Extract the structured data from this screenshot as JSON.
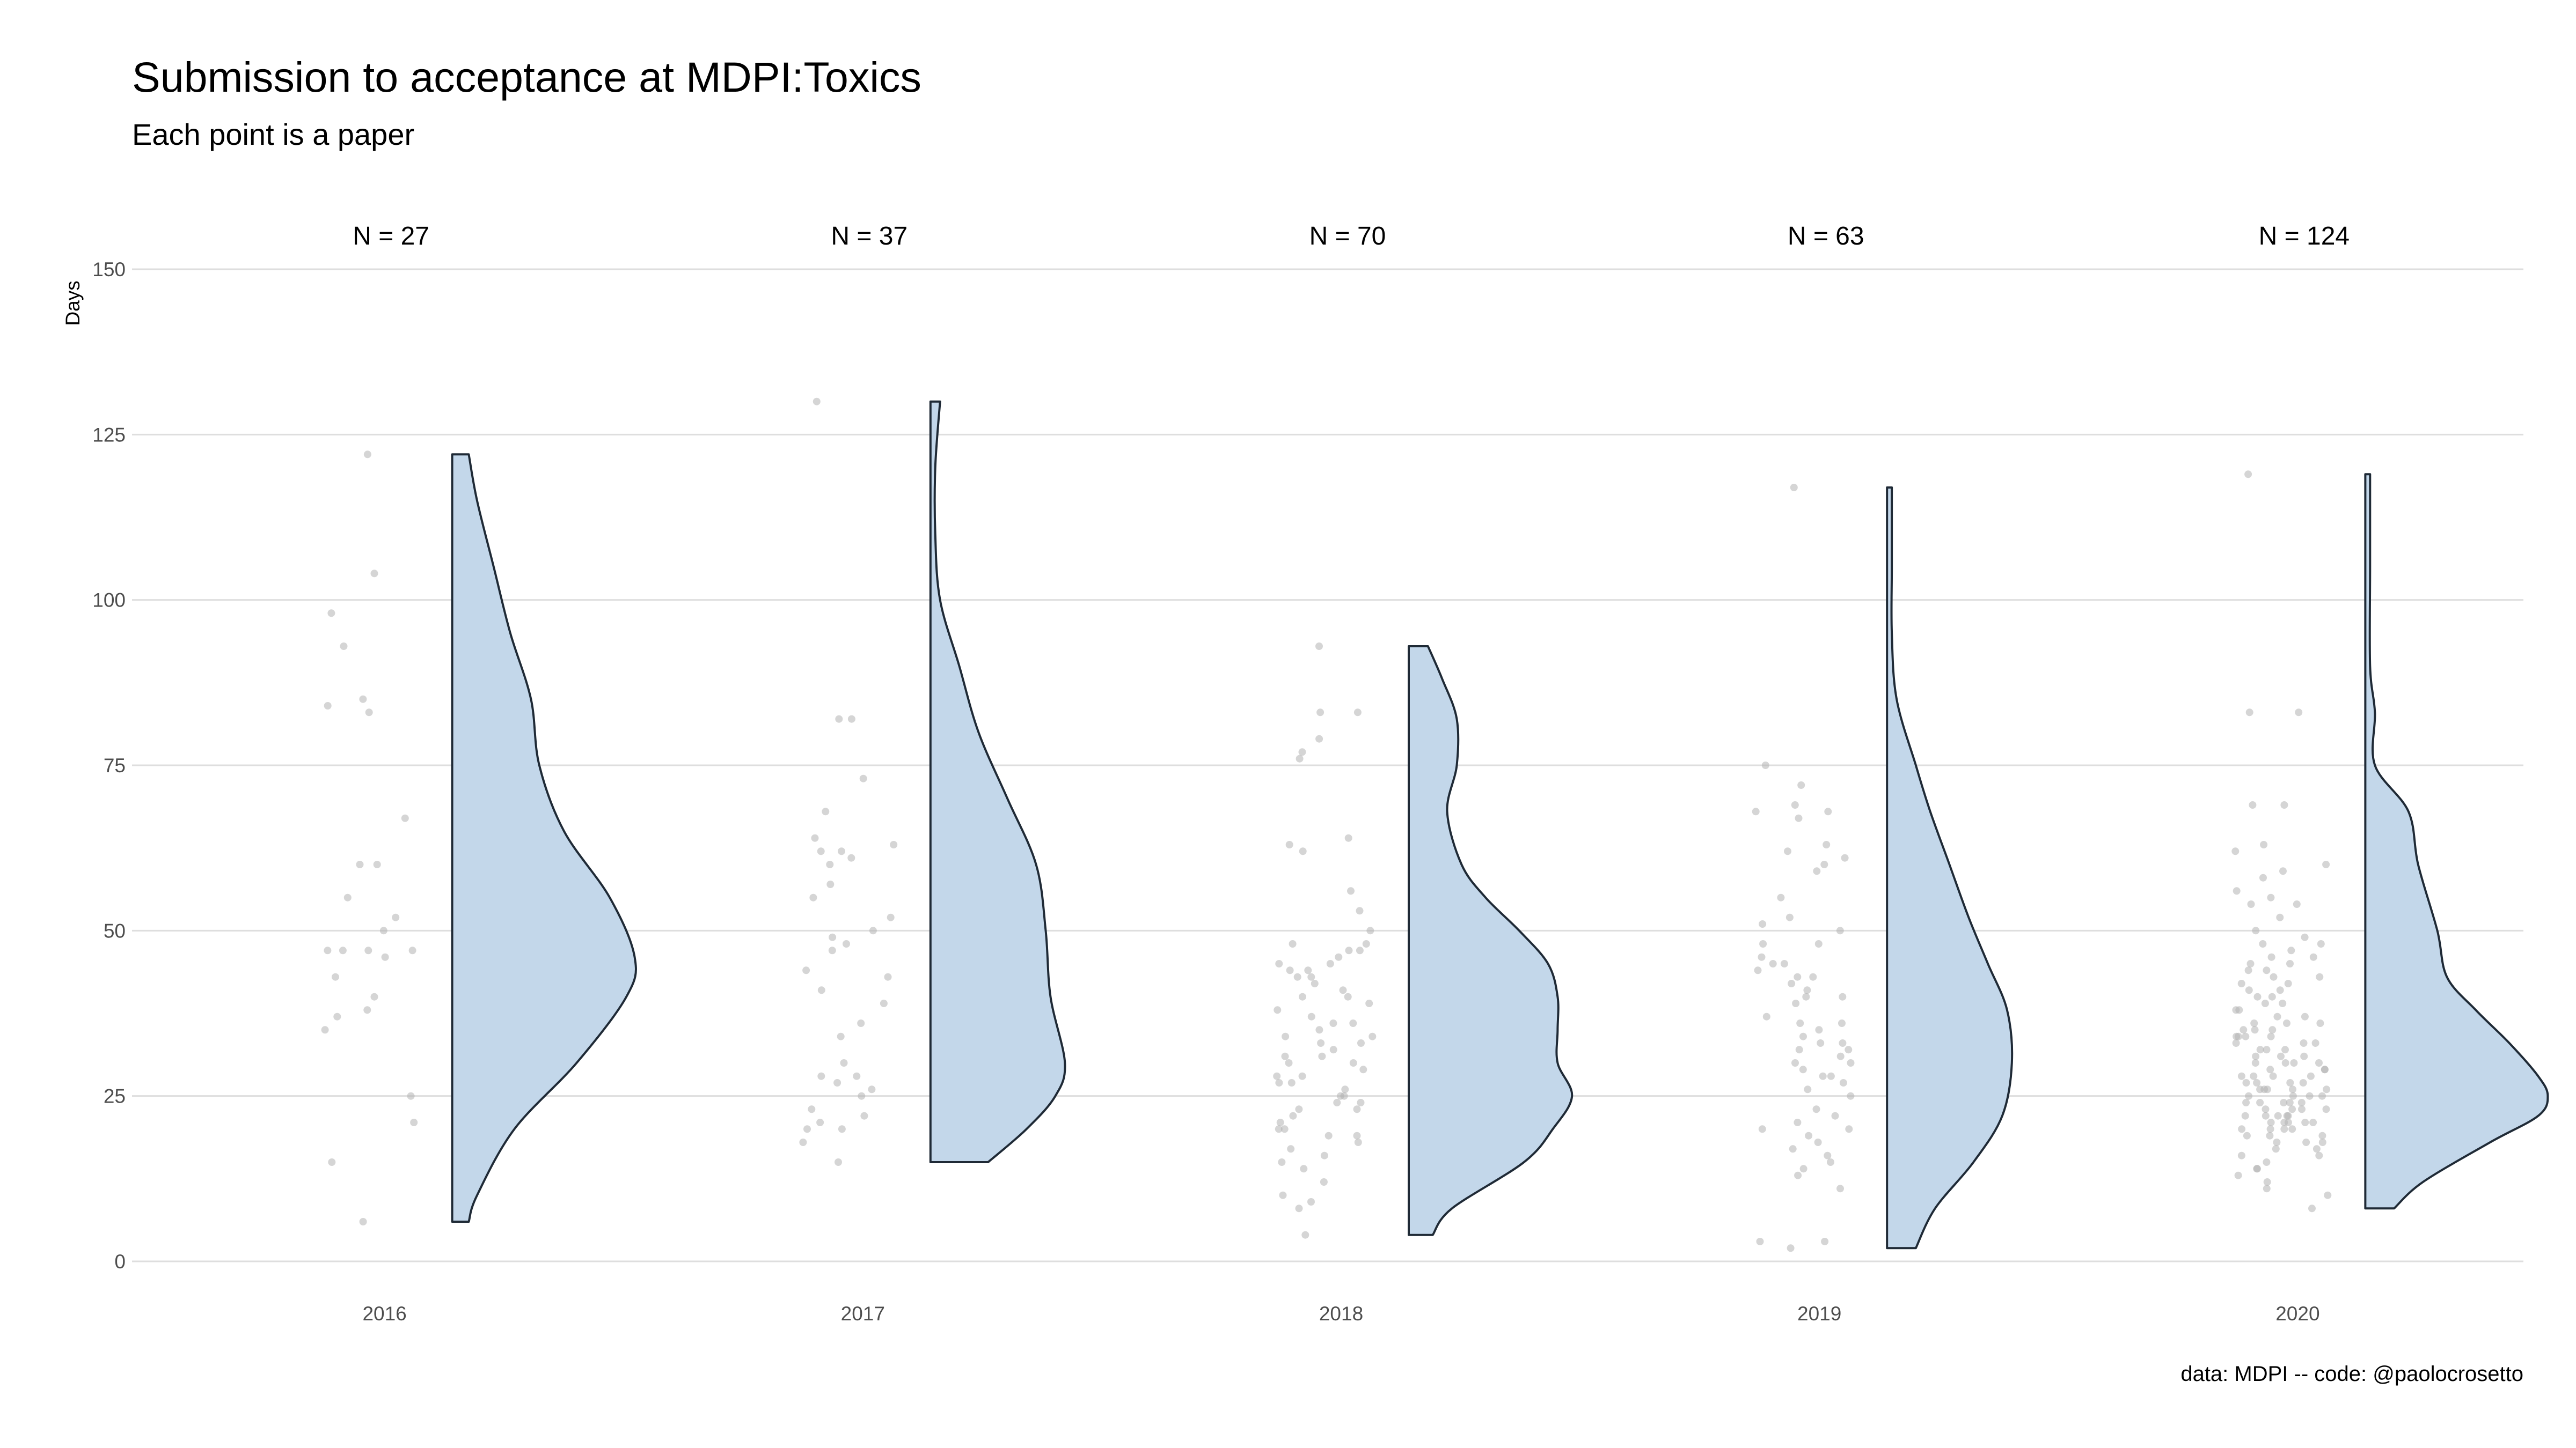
{
  "title": "Submission to acceptance at MDPI:Toxics",
  "subtitle": "Each point is a paper",
  "caption": "data: MDPI -- code: @paolocrosetto",
  "chart_data": {
    "type": "violin",
    "title": "Submission to acceptance at MDPI:Toxics",
    "subtitle": "Each point is a paper",
    "ylabel": "Days",
    "xlabel": "",
    "ylim": [
      0,
      150
    ],
    "yticks": [
      0,
      25,
      50,
      75,
      100,
      125,
      150
    ],
    "grid": "horizontal",
    "fill_color": "#c3d7ea",
    "outline_color": "#1f2a36",
    "point_color": "#b3b3b3",
    "categories": [
      "2016",
      "2017",
      "2018",
      "2019",
      "2020"
    ],
    "counts": [
      "N = 27",
      "N = 37",
      "N = 70",
      "N = 63",
      "N = 124"
    ],
    "groups": [
      {
        "year": "2016",
        "min": 6,
        "max": 122,
        "density": [
          [
            6,
            0.04
          ],
          [
            10,
            0.06
          ],
          [
            20,
            0.15
          ],
          [
            30,
            0.3
          ],
          [
            40,
            0.42
          ],
          [
            46,
            0.44
          ],
          [
            55,
            0.38
          ],
          [
            65,
            0.27
          ],
          [
            75,
            0.21
          ],
          [
            85,
            0.19
          ],
          [
            95,
            0.14
          ],
          [
            105,
            0.1
          ],
          [
            115,
            0.06
          ],
          [
            122,
            0.04
          ]
        ],
        "points": [
          122,
          104,
          98,
          93,
          85,
          83,
          84,
          67,
          60,
          60,
          55,
          52,
          50,
          47,
          47,
          47,
          46,
          43,
          40,
          38,
          37,
          35,
          25,
          21,
          15,
          6,
          47
        ]
      },
      {
        "year": "2017",
        "min": 15,
        "max": 130,
        "density": [
          [
            15,
            0.12
          ],
          [
            20,
            0.2
          ],
          [
            25,
            0.26
          ],
          [
            30,
            0.28
          ],
          [
            40,
            0.25
          ],
          [
            50,
            0.24
          ],
          [
            60,
            0.22
          ],
          [
            70,
            0.16
          ],
          [
            80,
            0.1
          ],
          [
            90,
            0.06
          ],
          [
            100,
            0.02
          ],
          [
            110,
            0.01
          ],
          [
            120,
            0.01
          ],
          [
            130,
            0.02
          ]
        ],
        "points": [
          130,
          82,
          82,
          73,
          68,
          64,
          63,
          62,
          62,
          61,
          57,
          55,
          50,
          49,
          47,
          44,
          43,
          41,
          39,
          30,
          28,
          28,
          27,
          26,
          25,
          23,
          21,
          20,
          20,
          18,
          15,
          22,
          36,
          52,
          60,
          34,
          48
        ]
      },
      {
        "year": "2018",
        "min": 4,
        "max": 93,
        "density": [
          [
            4,
            0.05
          ],
          [
            8,
            0.09
          ],
          [
            15,
            0.24
          ],
          [
            20,
            0.3
          ],
          [
            25,
            0.34
          ],
          [
            30,
            0.31
          ],
          [
            35,
            0.31
          ],
          [
            40,
            0.31
          ],
          [
            45,
            0.29
          ],
          [
            50,
            0.23
          ],
          [
            55,
            0.16
          ],
          [
            60,
            0.11
          ],
          [
            68,
            0.08
          ],
          [
            75,
            0.1
          ],
          [
            82,
            0.1
          ],
          [
            88,
            0.07
          ],
          [
            93,
            0.04
          ]
        ],
        "points": [
          93,
          83,
          83,
          79,
          77,
          76,
          64,
          63,
          62,
          56,
          53,
          50,
          48,
          47,
          47,
          46,
          45,
          45,
          44,
          43,
          43,
          42,
          41,
          40,
          40,
          39,
          38,
          37,
          36,
          35,
          34,
          34,
          33,
          33,
          32,
          31,
          30,
          30,
          29,
          28,
          27,
          27,
          26,
          25,
          25,
          24,
          23,
          23,
          22,
          21,
          20,
          20,
          19,
          19,
          18,
          17,
          16,
          15,
          14,
          12,
          10,
          9,
          8,
          4,
          36,
          44,
          48,
          28,
          24,
          31
        ]
      },
      {
        "year": "2019",
        "min": 2,
        "max": 117,
        "density": [
          [
            2,
            0.06
          ],
          [
            8,
            0.1
          ],
          [
            15,
            0.18
          ],
          [
            22,
            0.24
          ],
          [
            30,
            0.26
          ],
          [
            38,
            0.25
          ],
          [
            45,
            0.21
          ],
          [
            52,
            0.17
          ],
          [
            60,
            0.13
          ],
          [
            68,
            0.09
          ],
          [
            75,
            0.06
          ],
          [
            85,
            0.02
          ],
          [
            95,
            0.01
          ],
          [
            105,
            0.01
          ],
          [
            117,
            0.01
          ]
        ],
        "points": [
          117,
          75,
          72,
          69,
          68,
          68,
          67,
          63,
          62,
          61,
          60,
          59,
          55,
          52,
          51,
          50,
          48,
          46,
          45,
          45,
          44,
          43,
          43,
          42,
          41,
          40,
          40,
          39,
          37,
          36,
          35,
          34,
          33,
          33,
          32,
          32,
          31,
          30,
          29,
          28,
          28,
          27,
          26,
          25,
          23,
          22,
          21,
          20,
          20,
          19,
          18,
          17,
          16,
          15,
          14,
          13,
          11,
          3,
          3,
          2,
          36,
          30,
          48
        ]
      },
      {
        "year": "2020",
        "min": 8,
        "max": 119,
        "density": [
          [
            8,
            0.06
          ],
          [
            12,
            0.12
          ],
          [
            18,
            0.26
          ],
          [
            22,
            0.36
          ],
          [
            25,
            0.38
          ],
          [
            28,
            0.36
          ],
          [
            33,
            0.3
          ],
          [
            38,
            0.23
          ],
          [
            43,
            0.17
          ],
          [
            50,
            0.15
          ],
          [
            60,
            0.11
          ],
          [
            68,
            0.09
          ],
          [
            75,
            0.02
          ],
          [
            83,
            0.02
          ],
          [
            90,
            0.01
          ],
          [
            105,
            0.01
          ],
          [
            119,
            0.01
          ]
        ],
        "points": [
          119,
          83,
          83,
          69,
          69,
          63,
          62,
          60,
          59,
          56,
          55,
          54,
          54,
          50,
          49,
          48,
          48,
          47,
          46,
          46,
          45,
          44,
          43,
          43,
          42,
          42,
          41,
          41,
          40,
          40,
          39,
          39,
          38,
          38,
          37,
          37,
          36,
          36,
          35,
          35,
          35,
          34,
          34,
          34,
          33,
          33,
          33,
          32,
          32,
          32,
          31,
          31,
          31,
          30,
          30,
          30,
          29,
          29,
          29,
          28,
          28,
          28,
          28,
          27,
          27,
          27,
          26,
          26,
          26,
          26,
          25,
          25,
          25,
          25,
          24,
          24,
          24,
          24,
          23,
          23,
          23,
          23,
          22,
          22,
          22,
          22,
          21,
          21,
          21,
          21,
          20,
          20,
          20,
          20,
          19,
          19,
          19,
          18,
          18,
          18,
          17,
          17,
          16,
          16,
          15,
          14,
          14,
          13,
          12,
          11,
          10,
          8,
          26,
          30,
          34,
          22,
          44,
          52,
          58,
          27,
          24,
          21,
          36,
          45
        ]
      }
    ]
  }
}
